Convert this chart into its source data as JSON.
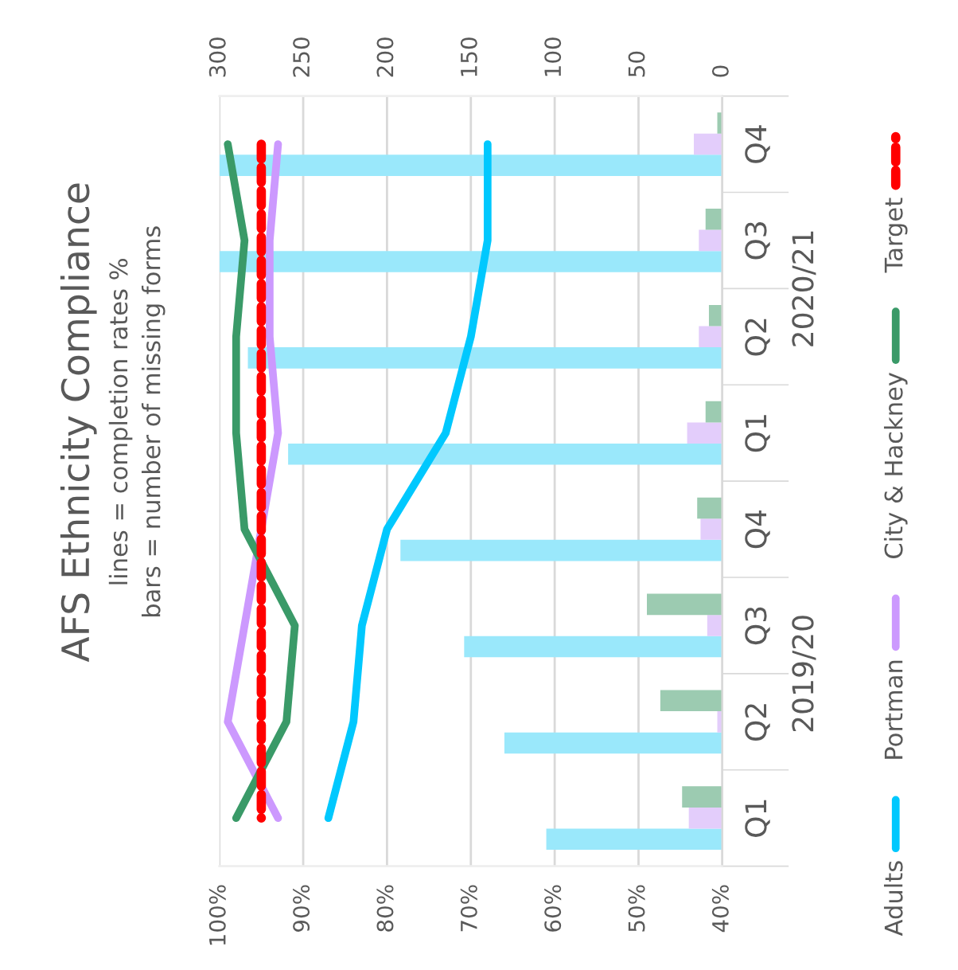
{
  "chart_data": {
    "type": "bar",
    "orientation": "horizontal",
    "title": "AFS Ethnicity Compliance",
    "subtitle": "lines = completion rates %\nbars = number of missing forms",
    "categories": [
      "Q4",
      "Q3",
      "Q2",
      "Q1",
      "Q4",
      "Q3",
      "Q2",
      "Q1"
    ],
    "series": [
      {
        "axis": "x2",
        "color": "#9ae8fb",
        "values": [
          300,
          300,
          283,
          259,
          192,
          154,
          130,
          105
        ]
      },
      {
        "axis": "x2",
        "color": "#e3cdfb",
        "values": [
          17,
          14,
          14,
          21,
          13,
          9,
          3,
          20
        ]
      },
      {
        "axis": "x2",
        "color": "#9ccbb1",
        "values": [
          3,
          10,
          8,
          10,
          15,
          45,
          37,
          24
        ]
      },
      {
        "type": "line",
        "name": "Adults",
        "color": "#00c8fe",
        "line_style": "solid",
        "values": [
          68,
          68,
          70,
          73,
          80,
          83,
          84,
          87
        ]
      },
      {
        "type": "line",
        "name": "Portman",
        "color": "#cc99fe",
        "line_style": "solid",
        "values": [
          93,
          94,
          94,
          93,
          95,
          97,
          99,
          93
        ]
      },
      {
        "type": "line",
        "name": "City & Hackney",
        "color": "#3a9a68",
        "line_style": "solid",
        "values": [
          99,
          97,
          98,
          98,
          97,
          91,
          92,
          98
        ]
      },
      {
        "type": "line",
        "name": "Target",
        "color": "#ff0000",
        "line_style": "dashed",
        "values": [
          95,
          95,
          95,
          95,
          95,
          95,
          95,
          95
        ]
      }
    ],
    "xlim": [
      100,
      40
    ],
    "xticks": [
      {
        "value": 100,
        "label": "100%"
      },
      {
        "value": 90,
        "label": "90%"
      },
      {
        "value": 80,
        "label": "80%"
      },
      {
        "value": 70,
        "label": "70%"
      },
      {
        "value": 60,
        "label": "60%"
      },
      {
        "value": 50,
        "label": "50%"
      },
      {
        "value": 40,
        "label": "40%"
      }
    ],
    "x2lim": [
      300,
      0
    ],
    "x2ticks": [
      300,
      250,
      200,
      150,
      100,
      50,
      0
    ],
    "grid": "x",
    "legend": "right",
    "annotations": [
      "2020/21",
      "2019/20"
    ]
  }
}
